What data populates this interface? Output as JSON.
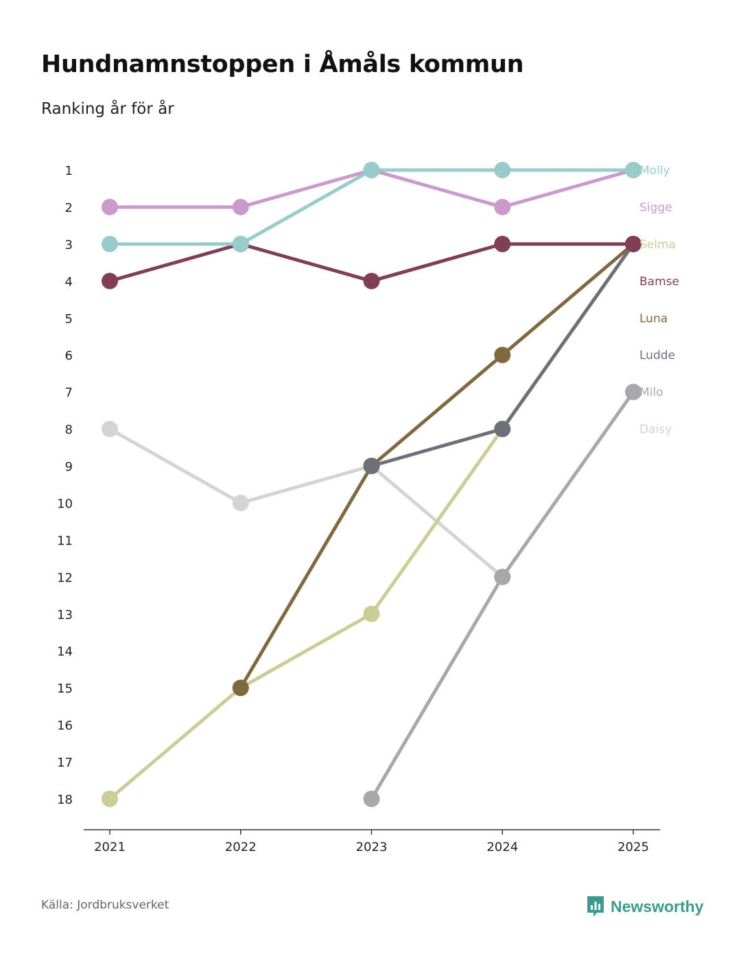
{
  "chart_data": {
    "type": "line",
    "title": "Hundnamnstoppen i Åmåls kommun",
    "subtitle": "Ranking år för år",
    "x": [
      "2021",
      "2022",
      "2023",
      "2024",
      "2025"
    ],
    "xlabel": "",
    "ylabel": "",
    "y_ticks": [
      "1",
      "2",
      "3",
      "4",
      "5",
      "6",
      "7",
      "8",
      "9",
      "10",
      "11",
      "12",
      "13",
      "14",
      "15",
      "16",
      "17",
      "18"
    ],
    "ylim": [
      1,
      18
    ],
    "y_inverted": true,
    "series": [
      {
        "name": "Daisy",
        "color": "#d4d4d4",
        "values": [
          8,
          10,
          9,
          12,
          null
        ]
      },
      {
        "name": "Milo",
        "color": "#a8a8aa",
        "values": [
          null,
          null,
          18,
          12,
          7
        ]
      },
      {
        "name": "Selma",
        "color": "#cccd96",
        "values": [
          18,
          15,
          13,
          8,
          3
        ]
      },
      {
        "name": "Luna",
        "color": "#7f6a3f",
        "values": [
          null,
          15,
          9,
          6,
          3
        ]
      },
      {
        "name": "Ludde",
        "color": "#6f6f79",
        "values": [
          null,
          null,
          9,
          8,
          3
        ]
      },
      {
        "name": "Bamse",
        "color": "#803f55",
        "values": [
          4,
          3,
          4,
          3,
          3
        ]
      },
      {
        "name": "Sigge",
        "color": "#cb9acd",
        "values": [
          2,
          2,
          1,
          2,
          1
        ]
      },
      {
        "name": "Molly",
        "color": "#98cccb",
        "values": [
          3,
          3,
          1,
          1,
          1
        ]
      }
    ],
    "legend_order": [
      "Molly",
      "Sigge",
      "Selma",
      "Bamse",
      "Luna",
      "Ludde",
      "Milo",
      "Daisy"
    ],
    "legend_position": "right"
  },
  "footer": {
    "source": "Källa: Jordbruksverket",
    "brand": "Newsworthy"
  }
}
